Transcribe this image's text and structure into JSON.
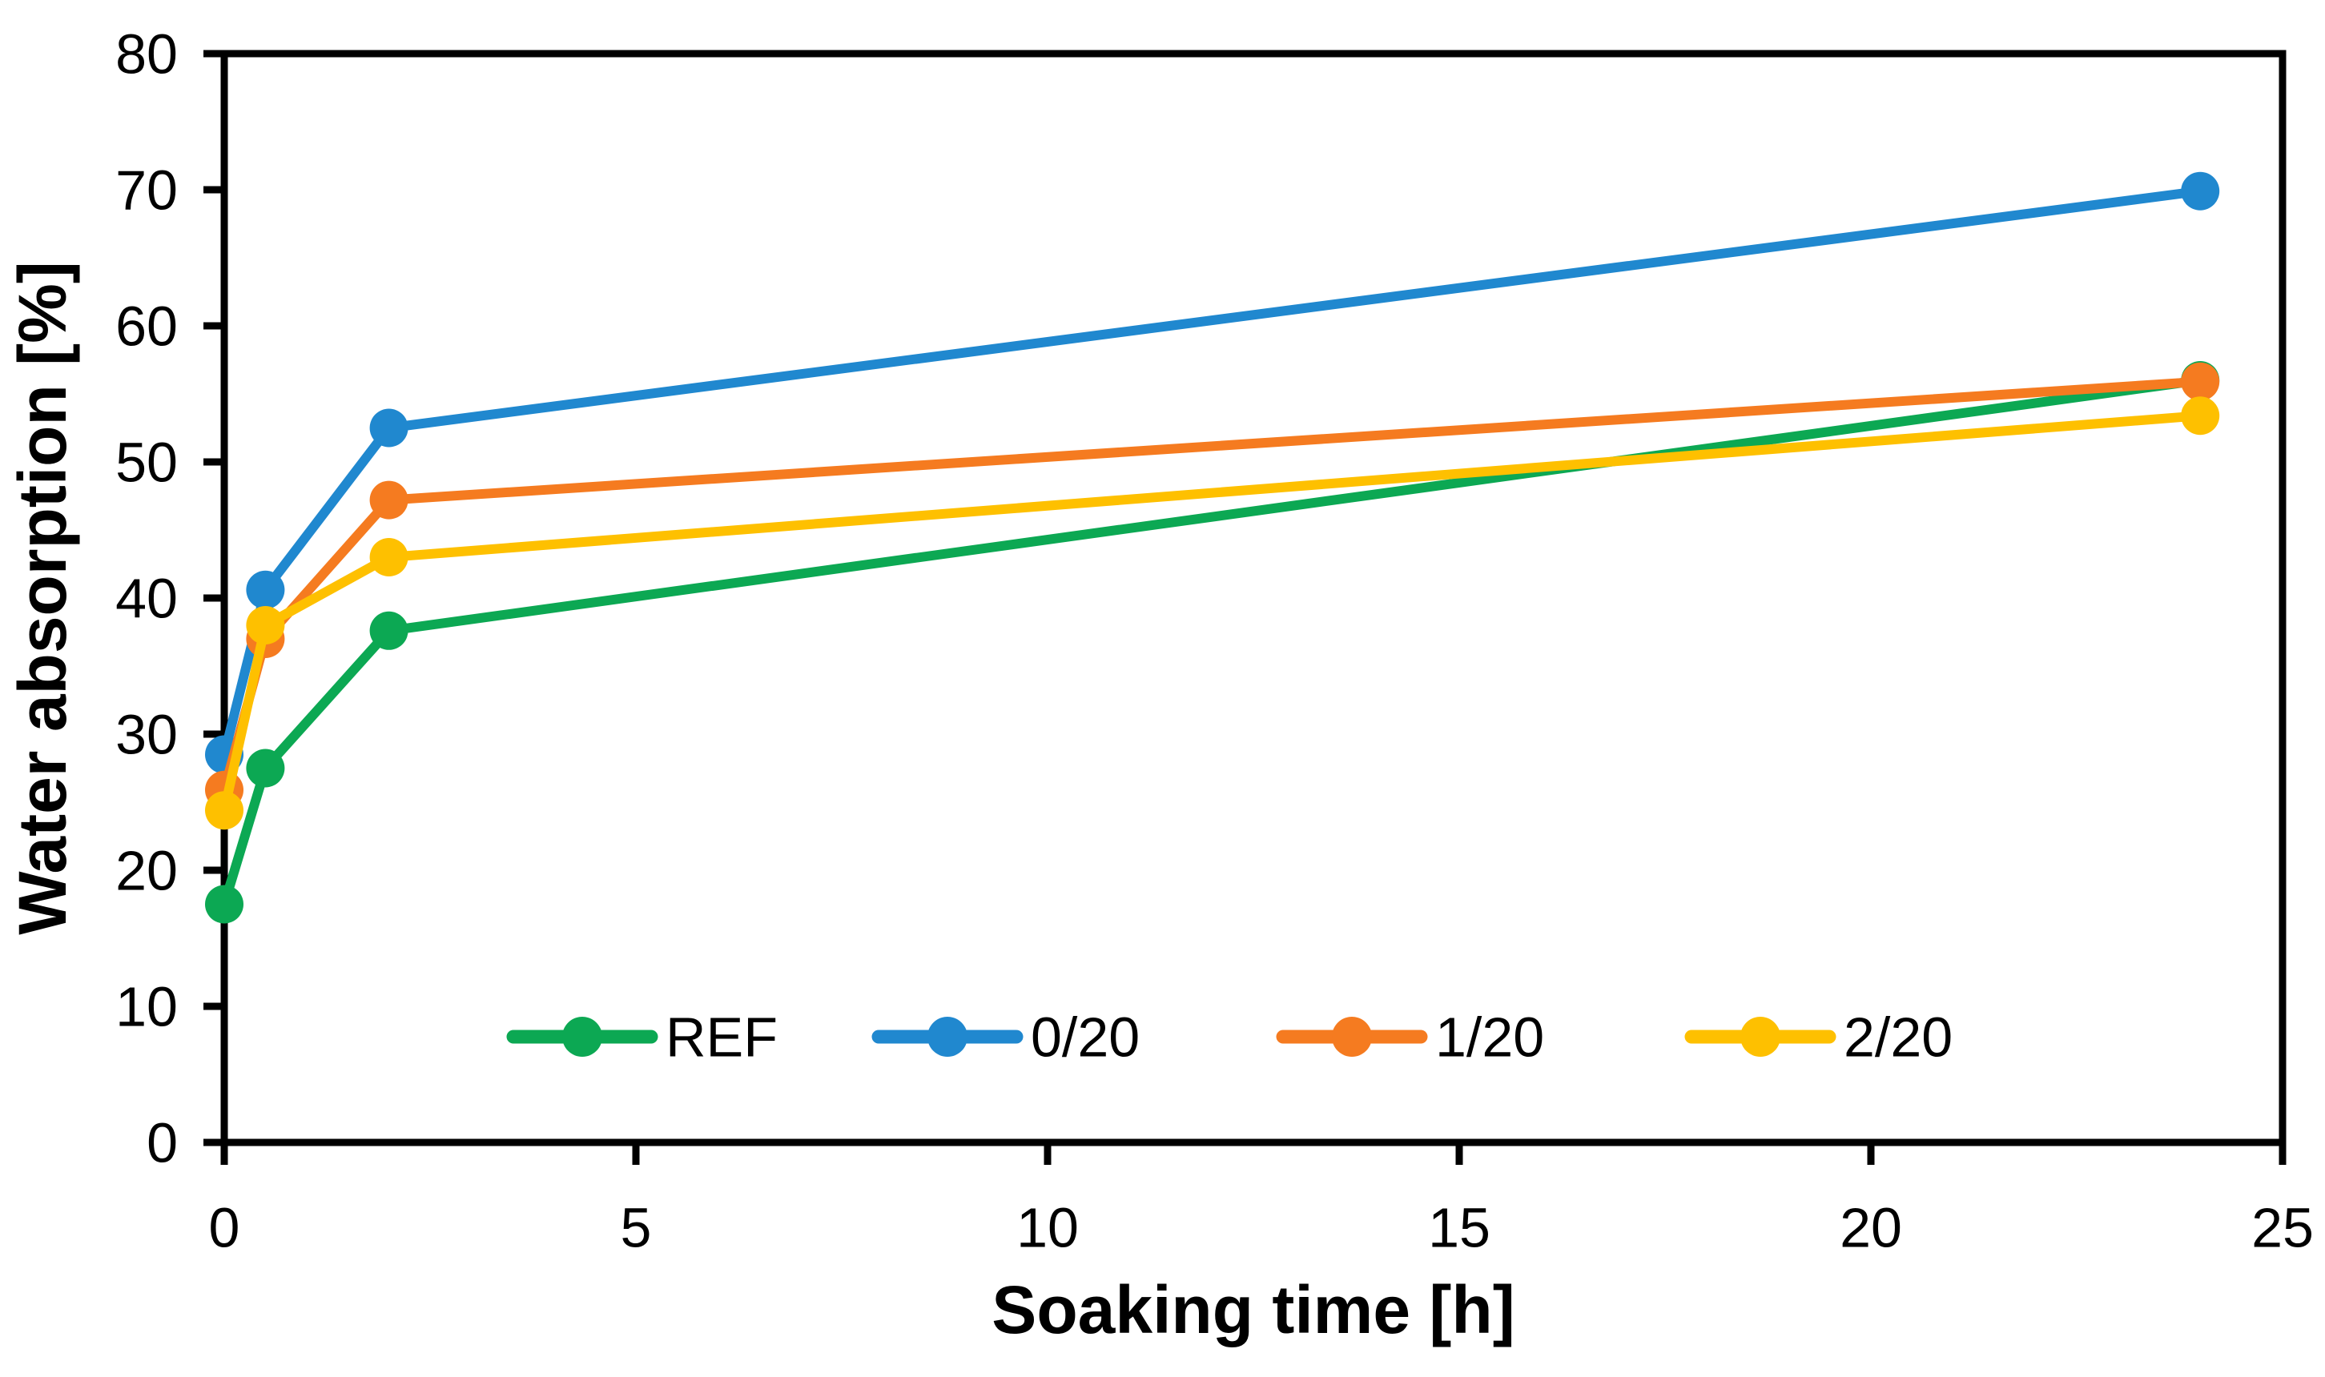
{
  "chart_data": {
    "type": "line",
    "title": "",
    "xlabel": "Soaking time [h]",
    "ylabel": "Water absorption [%]",
    "x": [
      0,
      0.5,
      2,
      24
    ],
    "series": [
      {
        "name": "REF",
        "color": "#0ca853",
        "values": [
          17.5,
          27.5,
          37.6,
          56.0
        ]
      },
      {
        "name": "0/20",
        "color": "#2088cf",
        "values": [
          28.5,
          40.6,
          52.5,
          69.9
        ]
      },
      {
        "name": "1/20",
        "color": "#f57b20",
        "values": [
          25.9,
          37.0,
          47.2,
          55.9
        ]
      },
      {
        "name": "2/20",
        "color": "#fec000",
        "values": [
          24.4,
          38.0,
          43.0,
          53.4
        ]
      }
    ],
    "xlim": [
      0,
      25
    ],
    "ylim": [
      0,
      80
    ],
    "x_ticks": [
      0,
      5,
      10,
      15,
      20,
      25
    ],
    "y_ticks": [
      0,
      10,
      20,
      30,
      40,
      50,
      60,
      70,
      80
    ],
    "grid": false,
    "legend_position": "inside-bottom",
    "legend_entries": [
      "REF",
      "0/20",
      "1/20",
      "2/20"
    ],
    "axis_color": "#000000",
    "marker": "circle"
  }
}
